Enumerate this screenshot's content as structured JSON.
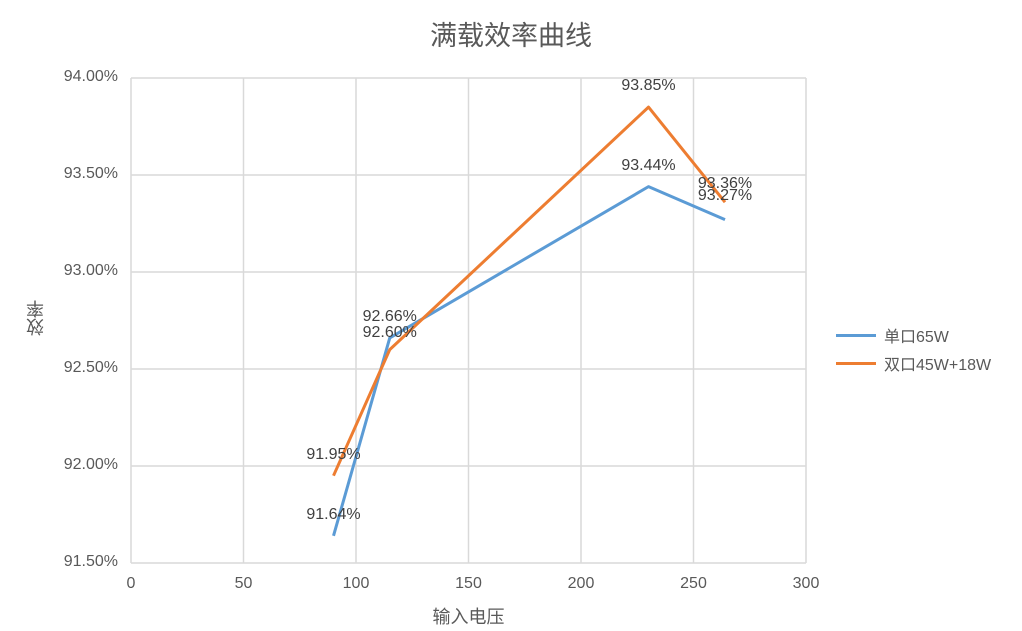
{
  "chart_data": {
    "type": "line",
    "title": "满载效率曲线",
    "xlabel": "输入电压",
    "ylabel": "效率",
    "xlim": [
      0,
      300
    ],
    "ylim": [
      91.5,
      94.0
    ],
    "x_ticks": [
      "0",
      "50",
      "100",
      "150",
      "200",
      "250",
      "300"
    ],
    "y_ticks": [
      "94.00%",
      "93.50%",
      "93.00%",
      "92.50%",
      "92.00%",
      "91.50%"
    ],
    "grid": true,
    "legend_position": "right",
    "series": [
      {
        "name": "单口65W",
        "color": "#5b9bd5",
        "x": [
          90,
          115,
          230,
          264
        ],
        "values": [
          91.64,
          92.66,
          93.44,
          93.27
        ],
        "labels": [
          "91.64%",
          "92.66%",
          "93.44%",
          "93.27%"
        ]
      },
      {
        "name": "双口45W+18W",
        "color": "#ed7d31",
        "x": [
          90,
          115,
          230,
          264
        ],
        "values": [
          91.95,
          92.6,
          93.85,
          93.36
        ],
        "labels": [
          "91.95%",
          "92.60%",
          "93.85%",
          "93.36%"
        ]
      }
    ]
  }
}
